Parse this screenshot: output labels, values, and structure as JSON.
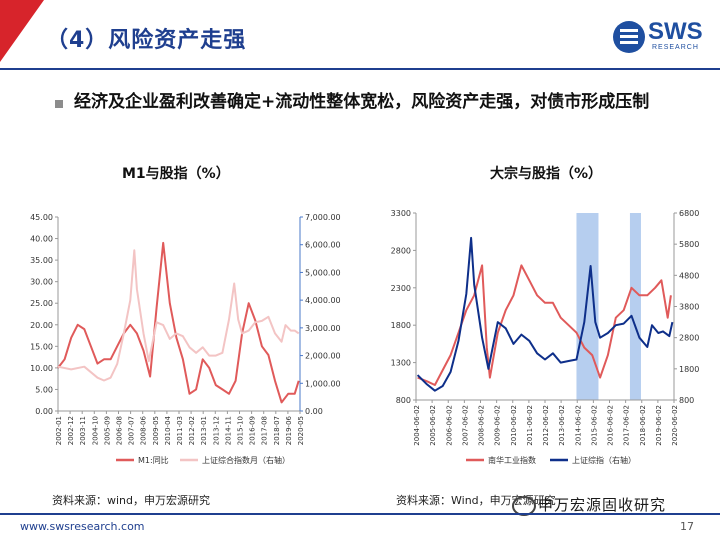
{
  "header": {
    "title": "（4）风险资产走强",
    "logo_text": "SWS",
    "logo_sub": "RESEARCH"
  },
  "headline": "经济及企业盈利改善确定+流动性整体宽松，风险资产走强，对债市形成压制",
  "colors": {
    "red": "#e05a5a",
    "pink": "#f3c4c4",
    "navy": "#0e2f8a",
    "highlight": "#a9c6ec",
    "brand": "#1f3f8f"
  },
  "chart_data": [
    {
      "type": "line",
      "title": "M1与股指（%）",
      "y_left": {
        "min": 0,
        "max": 45,
        "ticks": [
          "0.00",
          "5.00",
          "10.00",
          "15.00",
          "20.00",
          "25.00",
          "30.00",
          "35.00",
          "40.00",
          "45.00"
        ]
      },
      "y_right": {
        "min": 0,
        "max": 7000,
        "ticks": [
          "0.00",
          "1,000.00",
          "2,000.00",
          "3,000.00",
          "4,000.00",
          "5,000.00",
          "6,000.00",
          "7,000.00"
        ]
      },
      "x_ticks": [
        "2002-01",
        "2002-12",
        "2003-11",
        "2004-10",
        "2005-09",
        "2006-08",
        "2007-07",
        "2008-06",
        "2009-05",
        "2010-04",
        "2011-03",
        "2012-02",
        "2013-01",
        "2013-12",
        "2014-11",
        "2015-10",
        "2016-09",
        "2017-08",
        "2018-07",
        "2019-06",
        "2020-05"
      ],
      "legend": [
        "M1:同比",
        "上证综合指数月（右轴）"
      ],
      "series": [
        {
          "name": "M1:同比",
          "axis": "left",
          "points": [
            [
              2002.0,
              10
            ],
            [
              2002.5,
              12
            ],
            [
              2003.0,
              17
            ],
            [
              2003.5,
              20
            ],
            [
              2004.0,
              19
            ],
            [
              2004.5,
              15
            ],
            [
              2005.0,
              11
            ],
            [
              2005.5,
              12
            ],
            [
              2006.0,
              12
            ],
            [
              2006.5,
              15
            ],
            [
              2007.0,
              18
            ],
            [
              2007.5,
              20
            ],
            [
              2008.0,
              18
            ],
            [
              2008.5,
              14
            ],
            [
              2009.0,
              8
            ],
            [
              2009.5,
              24
            ],
            [
              2010.0,
              39
            ],
            [
              2010.5,
              25
            ],
            [
              2011.0,
              17
            ],
            [
              2011.5,
              12
            ],
            [
              2012.0,
              4
            ],
            [
              2012.5,
              5
            ],
            [
              2013.0,
              12
            ],
            [
              2013.5,
              10
            ],
            [
              2014.0,
              6
            ],
            [
              2014.5,
              5
            ],
            [
              2015.0,
              4
            ],
            [
              2015.5,
              7
            ],
            [
              2016.0,
              18
            ],
            [
              2016.5,
              25
            ],
            [
              2017.0,
              21
            ],
            [
              2017.5,
              15
            ],
            [
              2018.0,
              13
            ],
            [
              2018.5,
              7
            ],
            [
              2019.0,
              2
            ],
            [
              2019.5,
              4
            ],
            [
              2020.0,
              4
            ],
            [
              2020.3,
              7
            ]
          ]
        },
        {
          "name": "上证综合指数月（右轴）",
          "axis": "right",
          "points": [
            [
              2002.0,
              1600
            ],
            [
              2003.0,
              1500
            ],
            [
              2004.0,
              1600
            ],
            [
              2005.0,
              1200
            ],
            [
              2005.5,
              1100
            ],
            [
              2006.0,
              1200
            ],
            [
              2006.5,
              1700
            ],
            [
              2007.0,
              2800
            ],
            [
              2007.5,
              4000
            ],
            [
              2007.8,
              5800
            ],
            [
              2008.0,
              4400
            ],
            [
              2008.5,
              2800
            ],
            [
              2008.9,
              1800
            ],
            [
              2009.5,
              3200
            ],
            [
              2010.0,
              3100
            ],
            [
              2010.5,
              2600
            ],
            [
              2011.0,
              2800
            ],
            [
              2011.5,
              2700
            ],
            [
              2012.0,
              2300
            ],
            [
              2012.5,
              2100
            ],
            [
              2013.0,
              2300
            ],
            [
              2013.5,
              2000
            ],
            [
              2014.0,
              2000
            ],
            [
              2014.5,
              2100
            ],
            [
              2015.0,
              3300
            ],
            [
              2015.4,
              4600
            ],
            [
              2015.7,
              3300
            ],
            [
              2016.0,
              2800
            ],
            [
              2016.5,
              2900
            ],
            [
              2017.0,
              3200
            ],
            [
              2017.5,
              3250
            ],
            [
              2018.0,
              3400
            ],
            [
              2018.5,
              2800
            ],
            [
              2019.0,
              2500
            ],
            [
              2019.3,
              3100
            ],
            [
              2019.7,
              2900
            ],
            [
              2020.0,
              2900
            ],
            [
              2020.3,
              2800
            ]
          ]
        }
      ]
    },
    {
      "type": "line",
      "title": "大宗与股指（%）",
      "y_left": {
        "min": 800,
        "max": 3300,
        "ticks": [
          "800",
          "1300",
          "1800",
          "2300",
          "2800",
          "3300"
        ]
      },
      "y_right": {
        "min": 800,
        "max": 6800,
        "ticks": [
          "800",
          "1800",
          "2800",
          "3800",
          "4800",
          "5800",
          "6800"
        ]
      },
      "x_ticks": [
        "2004-06-02",
        "2005-06-02",
        "2006-06-02",
        "2007-06-02",
        "2008-06-02",
        "2009-06-02",
        "2010-06-02",
        "2011-06-02",
        "2012-06-02",
        "2013-06-02",
        "2014-06-02",
        "2015-06-02",
        "2016-06-02",
        "2017-06-02",
        "2018-06-02",
        "2019-06-02",
        "2020-06-02"
      ],
      "legend": [
        "南华工业指数",
        "上证综指（右轴）"
      ],
      "shaded_ranges": [
        [
          2014.5,
          2015.9
        ],
        [
          2017.9,
          2018.6
        ]
      ],
      "series": [
        {
          "name": "南华工业指数",
          "axis": "left",
          "points": [
            [
              2004.4,
              1100
            ],
            [
              2005.0,
              1050
            ],
            [
              2005.5,
              1000
            ],
            [
              2006.0,
              1200
            ],
            [
              2006.5,
              1400
            ],
            [
              2007.0,
              1700
            ],
            [
              2007.5,
              2000
            ],
            [
              2008.0,
              2200
            ],
            [
              2008.5,
              2600
            ],
            [
              2008.8,
              1500
            ],
            [
              2009.0,
              1100
            ],
            [
              2009.5,
              1700
            ],
            [
              2010.0,
              2000
            ],
            [
              2010.5,
              2200
            ],
            [
              2011.0,
              2600
            ],
            [
              2011.5,
              2400
            ],
            [
              2012.0,
              2200
            ],
            [
              2012.5,
              2100
            ],
            [
              2013.0,
              2100
            ],
            [
              2013.5,
              1900
            ],
            [
              2014.0,
              1800
            ],
            [
              2014.5,
              1700
            ],
            [
              2015.0,
              1500
            ],
            [
              2015.5,
              1400
            ],
            [
              2016.0,
              1100
            ],
            [
              2016.5,
              1400
            ],
            [
              2017.0,
              1900
            ],
            [
              2017.5,
              2000
            ],
            [
              2018.0,
              2300
            ],
            [
              2018.5,
              2200
            ],
            [
              2019.0,
              2200
            ],
            [
              2019.5,
              2300
            ],
            [
              2019.9,
              2400
            ],
            [
              2020.3,
              1900
            ],
            [
              2020.5,
              2200
            ]
          ]
        },
        {
          "name": "上证综指（右轴）",
          "axis": "right",
          "points": [
            [
              2004.4,
              1600
            ],
            [
              2005.0,
              1300
            ],
            [
              2005.5,
              1100
            ],
            [
              2006.0,
              1250
            ],
            [
              2006.5,
              1700
            ],
            [
              2007.0,
              2700
            ],
            [
              2007.5,
              4200
            ],
            [
              2007.8,
              6000
            ],
            [
              2008.0,
              4500
            ],
            [
              2008.5,
              2800
            ],
            [
              2008.9,
              1800
            ],
            [
              2009.5,
              3300
            ],
            [
              2010.0,
              3100
            ],
            [
              2010.5,
              2600
            ],
            [
              2011.0,
              2900
            ],
            [
              2011.5,
              2700
            ],
            [
              2012.0,
              2300
            ],
            [
              2012.5,
              2100
            ],
            [
              2013.0,
              2300
            ],
            [
              2013.5,
              2000
            ],
            [
              2014.0,
              2050
            ],
            [
              2014.5,
              2100
            ],
            [
              2015.0,
              3300
            ],
            [
              2015.4,
              5100
            ],
            [
              2015.7,
              3300
            ],
            [
              2016.0,
              2800
            ],
            [
              2016.5,
              2950
            ],
            [
              2017.0,
              3200
            ],
            [
              2017.5,
              3250
            ],
            [
              2018.0,
              3500
            ],
            [
              2018.5,
              2800
            ],
            [
              2019.0,
              2500
            ],
            [
              2019.3,
              3200
            ],
            [
              2019.7,
              2950
            ],
            [
              2020.0,
              3000
            ],
            [
              2020.4,
              2850
            ],
            [
              2020.6,
              3300
            ]
          ]
        }
      ]
    }
  ],
  "sources": {
    "left": "资料来源：wind，申万宏源研究",
    "right": "资料来源：Wind，申万宏源研究"
  },
  "footer": {
    "url": "www.swsresearch.com",
    "page": "17",
    "watermark": "申万宏源固收研究"
  }
}
